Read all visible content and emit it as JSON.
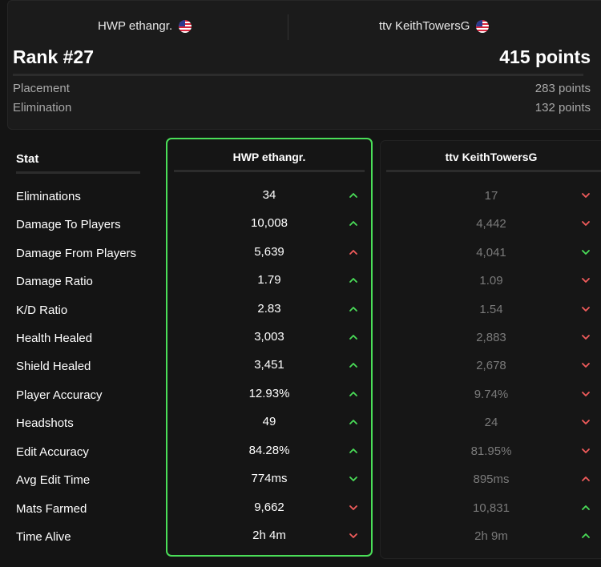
{
  "header": {
    "player1": {
      "name": "HWP ethangr.",
      "flag": "us-flag-icon"
    },
    "player2": {
      "name": "ttv KeithTowersG",
      "flag": "us-flag-icon"
    },
    "rank": "Rank #27",
    "total_points": "415 points",
    "breakdown": [
      {
        "label": "Placement",
        "value": "283 points"
      },
      {
        "label": "Elimination",
        "value": "132 points"
      }
    ]
  },
  "table": {
    "stat_header": "Stat",
    "col1_header": "HWP ethangr.",
    "col2_header": "ttv KeithTowersG",
    "rows": [
      {
        "label": "Eliminations",
        "v1": "34",
        "a1": "up",
        "v2": "17",
        "a2": "down"
      },
      {
        "label": "Damage To Players",
        "v1": "10,008",
        "a1": "up",
        "v2": "4,442",
        "a2": "down"
      },
      {
        "label": "Damage From Players",
        "v1": "5,639",
        "a1": "up-red",
        "v2": "4,041",
        "a2": "down-green"
      },
      {
        "label": "Damage Ratio",
        "v1": "1.79",
        "a1": "up",
        "v2": "1.09",
        "a2": "down"
      },
      {
        "label": "K/D Ratio",
        "v1": "2.83",
        "a1": "up",
        "v2": "1.54",
        "a2": "down"
      },
      {
        "label": "Health Healed",
        "v1": "3,003",
        "a1": "up",
        "v2": "2,883",
        "a2": "down"
      },
      {
        "label": "Shield Healed",
        "v1": "3,451",
        "a1": "up",
        "v2": "2,678",
        "a2": "down"
      },
      {
        "label": "Player Accuracy",
        "v1": "12.93%",
        "a1": "up",
        "v2": "9.74%",
        "a2": "down"
      },
      {
        "label": "Headshots",
        "v1": "49",
        "a1": "up",
        "v2": "24",
        "a2": "down"
      },
      {
        "label": "Edit Accuracy",
        "v1": "84.28%",
        "a1": "up",
        "v2": "81.95%",
        "a2": "down"
      },
      {
        "label": "Avg Edit Time",
        "v1": "774ms",
        "a1": "down-green",
        "v2": "895ms",
        "a2": "up-red"
      },
      {
        "label": "Mats Farmed",
        "v1": "9,662",
        "a1": "down",
        "v2": "10,831",
        "a2": "up"
      },
      {
        "label": "Time Alive",
        "v1": "2h 4m",
        "a1": "down",
        "v2": "2h 9m",
        "a2": "up"
      }
    ]
  },
  "colors": {
    "green": "#4ade58",
    "red": "#f25c5c"
  }
}
